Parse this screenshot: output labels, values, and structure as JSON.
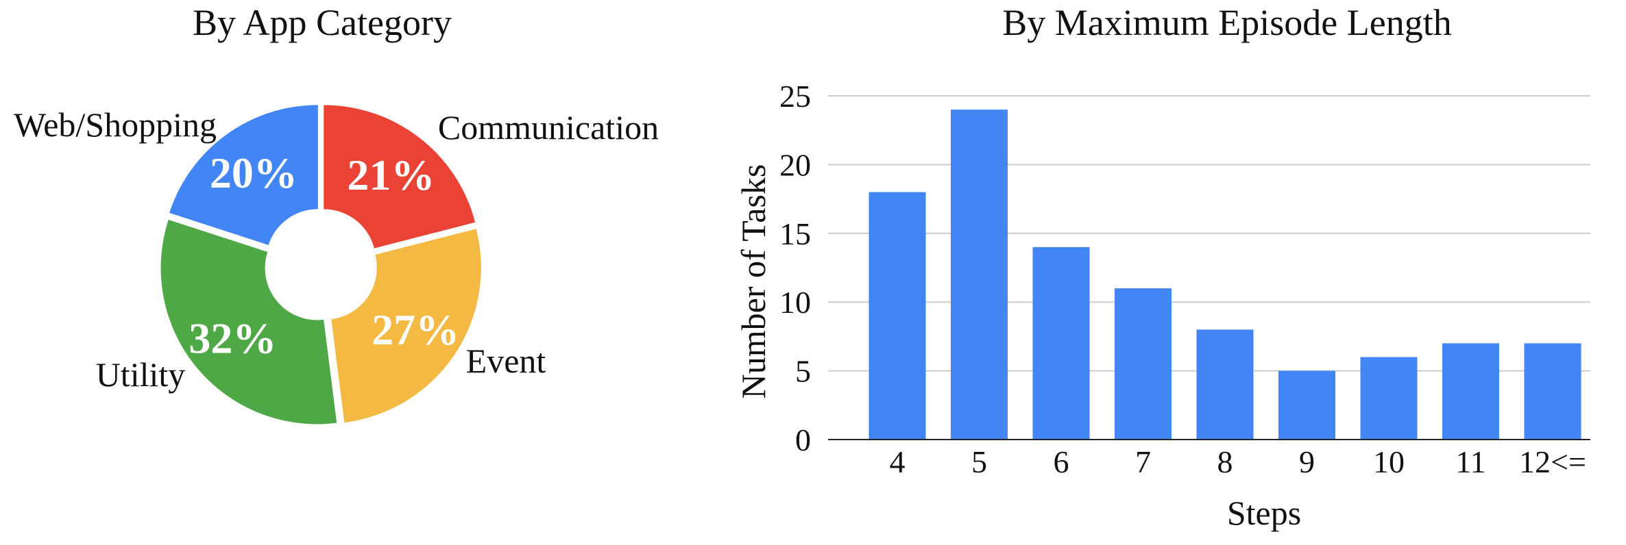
{
  "chart_data": [
    {
      "type": "pie",
      "variant": "donut",
      "title": "By App Category",
      "slices": [
        {
          "label": "Communication",
          "value": 21,
          "pct_label": "21%",
          "color": "#EA4335"
        },
        {
          "label": "Event",
          "value": 27,
          "pct_label": "27%",
          "color": "#F4B942"
        },
        {
          "label": "Utility",
          "value": 32,
          "pct_label": "32%",
          "color": "#4EA845"
        },
        {
          "label": "Web/Shopping",
          "value": 20,
          "pct_label": "20%",
          "color": "#4285F4"
        }
      ]
    },
    {
      "type": "bar",
      "title": "By Maximum Episode Length",
      "xlabel": "Steps",
      "ylabel": "Number of Tasks",
      "categories": [
        "4",
        "5",
        "6",
        "7",
        "8",
        "9",
        "10",
        "11",
        "12<="
      ],
      "values": [
        18,
        24,
        14,
        11,
        8,
        5,
        6,
        7,
        7
      ],
      "ylim": [
        0,
        25
      ],
      "yticks": [
        0,
        5,
        10,
        15,
        20,
        25
      ],
      "grid": "horizontal",
      "bar_color": "#4285F4"
    }
  ]
}
